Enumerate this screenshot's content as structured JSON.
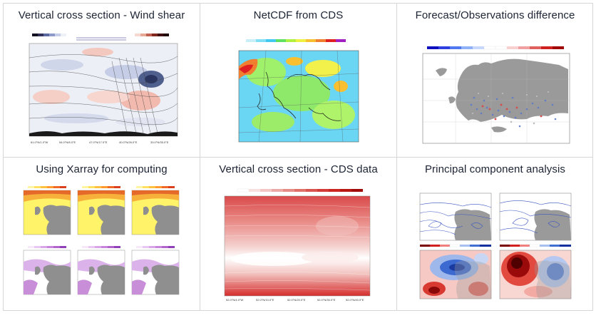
{
  "gallery": {
    "cards": [
      {
        "title": "Vertical cross section - Wind shear"
      },
      {
        "title": "NetCDF from CDS"
      },
      {
        "title": "Forecast/Observations difference"
      },
      {
        "title": "Using Xarray for computing"
      },
      {
        "title": "Vertical cross section - CDS data"
      },
      {
        "title": "Principal component analysis"
      }
    ]
  },
  "colors": {
    "border": "#d6d6d6",
    "title_text": "#1c2333",
    "land_grey": "#9a9a9a",
    "cool": "#3a6fb5",
    "warm": "#d63a2e"
  },
  "icons": [
    "wind-shear-plot",
    "netcdf-map",
    "difference-map",
    "xarray-maps",
    "cds-cross-section",
    "pca-maps"
  ]
}
